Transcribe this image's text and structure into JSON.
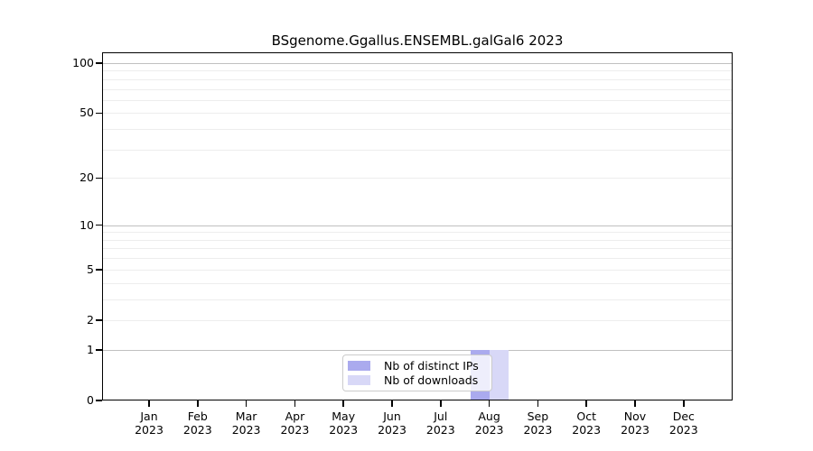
{
  "chart_data": {
    "type": "bar",
    "title": "BSgenome.Ggallus.ENSEMBL.galGal6 2023",
    "year": "2023",
    "categories": [
      "Jan",
      "Feb",
      "Mar",
      "Apr",
      "May",
      "Jun",
      "Jul",
      "Aug",
      "Sep",
      "Oct",
      "Nov",
      "Dec"
    ],
    "series": [
      {
        "name": "Nb of distinct IPs",
        "color": "#aaaaee",
        "values": [
          0,
          0,
          0,
          0,
          0,
          0,
          0,
          1,
          0,
          0,
          0,
          0
        ]
      },
      {
        "name": "Nb of downloads",
        "color": "#d8d8f7",
        "values": [
          0,
          0,
          0,
          0,
          0,
          0,
          0,
          1,
          0,
          0,
          0,
          0
        ]
      }
    ],
    "y_scale": "log1p",
    "ylim": [
      0,
      100
    ],
    "y_ticks": [
      0,
      1,
      2,
      5,
      10,
      20,
      50,
      100
    ],
    "grid_major": [
      1,
      10,
      100
    ],
    "grid_minor": [
      2,
      3,
      4,
      5,
      6,
      7,
      8,
      9,
      20,
      30,
      40,
      50,
      60,
      70,
      80,
      90
    ],
    "legend_position": "bottom-center",
    "grid_on": true,
    "colors": {
      "grid_major": "#c0c0c0",
      "grid_minor": "#ededed",
      "axis": "#000000",
      "background": "#ffffff"
    }
  }
}
